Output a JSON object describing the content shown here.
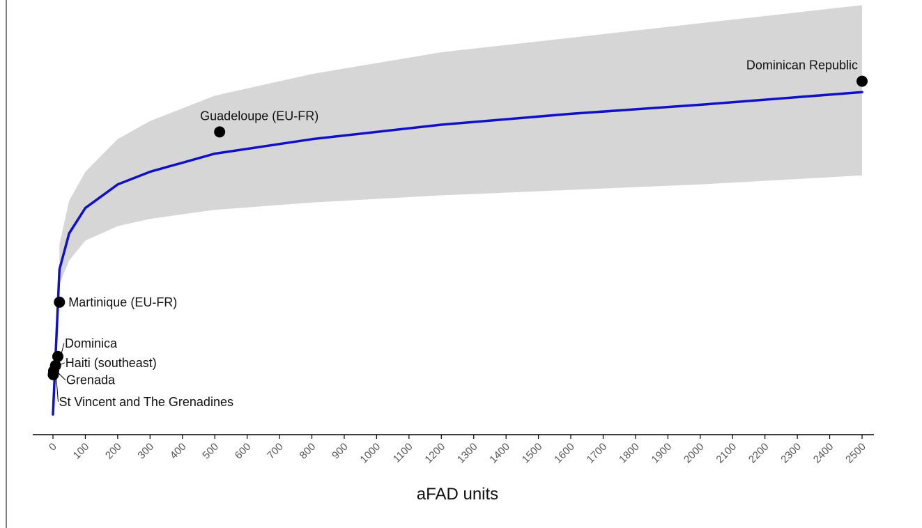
{
  "chart_data": {
    "type": "scatter",
    "xlabel": "aFAD units",
    "ylabel": "",
    "xlim": [
      0,
      2500
    ],
    "x_ticks": [
      "0",
      "100",
      "200",
      "300",
      "400",
      "500",
      "600",
      "700",
      "800",
      "900",
      "1000",
      "1100",
      "1200",
      "1300",
      "1400",
      "1500",
      "1600",
      "1700",
      "1800",
      "1900",
      "2000",
      "2100",
      "2200",
      "2300",
      "2400",
      "2500"
    ],
    "grid": false,
    "legend": "none",
    "colors": {
      "fit_line": "#1010c8",
      "confidence_band": "#d6d6d6",
      "points": "#000000",
      "axis": "#000000"
    },
    "points": [
      {
        "label": "Dominican Republic",
        "x": 2500,
        "y": 0.92
      },
      {
        "label": "Guadeloupe (EU-FR)",
        "x": 515,
        "y": 0.78
      },
      {
        "label": "Martinique (EU-FR)",
        "x": 20,
        "y": 0.31
      },
      {
        "label": "Dominica",
        "x": 15,
        "y": 0.16
      },
      {
        "label": "Haiti (southeast)",
        "x": 8,
        "y": 0.135
      },
      {
        "label": "Grenada",
        "x": 2,
        "y": 0.12
      },
      {
        "label": "St Vincent and The Grenadines",
        "x": 1,
        "y": 0.11
      }
    ],
    "fit": {
      "x": [
        0,
        20,
        50,
        100,
        200,
        300,
        500,
        800,
        1200,
        1600,
        2000,
        2500
      ],
      "y": [
        0.0,
        0.4,
        0.5,
        0.57,
        0.635,
        0.67,
        0.72,
        0.76,
        0.8,
        0.83,
        0.855,
        0.89
      ],
      "lower": [
        null,
        0.36,
        0.425,
        0.48,
        0.52,
        0.54,
        0.565,
        0.585,
        0.605,
        0.62,
        0.635,
        0.66
      ],
      "upper": [
        null,
        0.47,
        0.59,
        0.67,
        0.76,
        0.81,
        0.88,
        0.94,
        1.0,
        1.04,
        1.08,
        1.13
      ]
    }
  }
}
